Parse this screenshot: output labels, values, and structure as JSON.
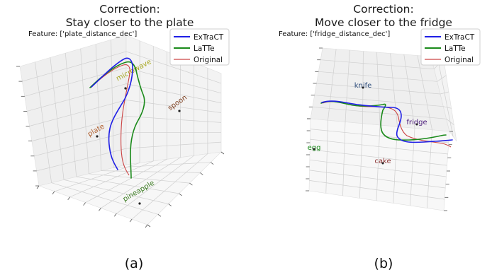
{
  "colors": {
    "extract": "#1f1fe6",
    "latte": "#1a8a1a",
    "original": "#cc4444"
  },
  "chart_data": [
    {
      "type": "line",
      "subtype": "3d-trajectory",
      "panel_caption": "(a)",
      "title_line1": "Correction:",
      "title_line2": "Stay closer to the plate",
      "feature_text": "Feature: ['plate_distance_dec']",
      "legend": [
        "ExTraCT",
        "LaTTe",
        "Original"
      ],
      "legend_position": "top-right",
      "grid": true,
      "objects": [
        {
          "name": "microwave",
          "color": "#a8a824"
        },
        {
          "name": "spoon",
          "color": "#7a3a1a"
        },
        {
          "name": "plate",
          "color": "#b06030"
        },
        {
          "name": "pineapple",
          "color": "#3a7a20"
        }
      ]
    },
    {
      "type": "line",
      "subtype": "3d-trajectory",
      "panel_caption": "(b)",
      "title_line1": "Correction:",
      "title_line2": "Move closer to the fridge",
      "feature_text": "Feature: ['fridge_distance_dec']",
      "legend": [
        "ExTraCT",
        "LaTTe",
        "Original"
      ],
      "legend_position": "top-right",
      "grid": true,
      "objects": [
        {
          "name": "knife",
          "color": "#2a4a7a"
        },
        {
          "name": "fridge",
          "color": "#4a1a7a"
        },
        {
          "name": "egg",
          "color": "#1a8a1a"
        },
        {
          "name": "cake",
          "color": "#8a3030"
        }
      ]
    }
  ]
}
